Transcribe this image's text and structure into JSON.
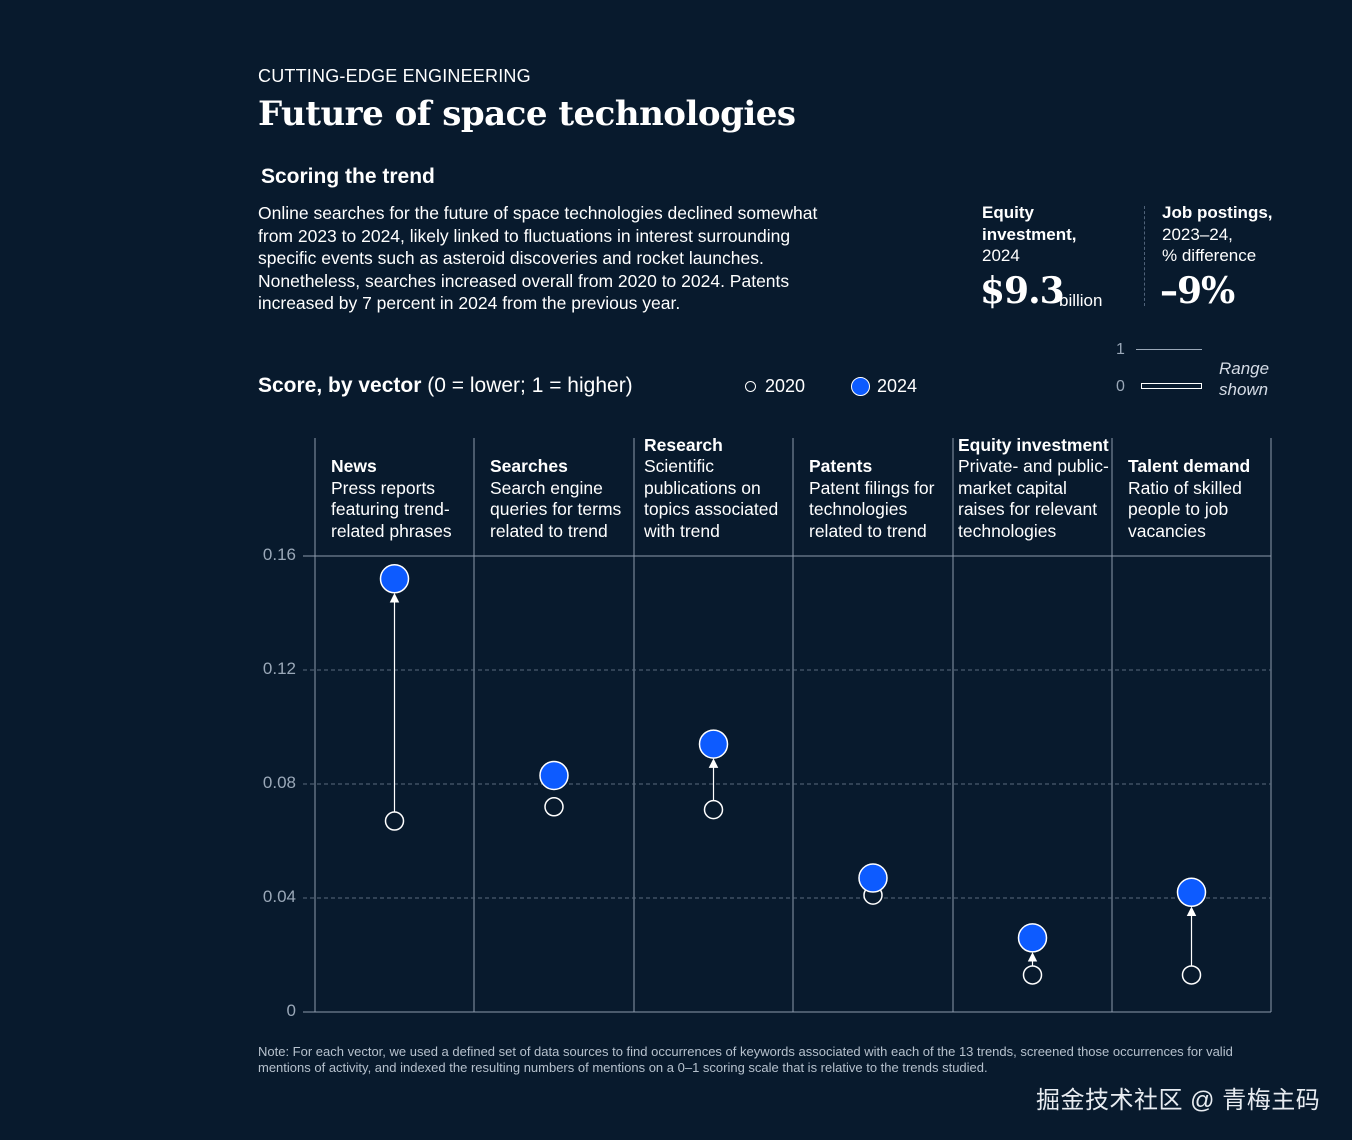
{
  "header": {
    "eyebrow": "CUTTING-EDGE ENGINEERING",
    "title": "Future of space technologies",
    "subhead": "Scoring the trend",
    "intro": "Online searches for the future of space technologies declined somewhat from 2023 to 2024, likely linked to fluctuations in interest surrounding specific events such as asteroid discoveries and rocket launches. Nonetheless, searches increased overall from 2020 to 2024. Patents increased by 7 percent in 2024 from the previous year."
  },
  "stats": {
    "equity": {
      "label_bold_1": "Equity",
      "label_bold_2": "investment,",
      "label_year": "2024",
      "value": "$9.3",
      "unit": "billion"
    },
    "jobs": {
      "label_bold": "Job postings,",
      "label_line2": "2023–24,",
      "label_line3": "% difference",
      "value": "–9%"
    }
  },
  "score": {
    "label_bold": "Score, by vector",
    "label_rest": " (0 = lower; 1 = higher)",
    "legend_2020": "2020",
    "legend_2024": "2024",
    "range_1": "1",
    "range_0": "0",
    "range_line1": "Range",
    "range_line2": "shown"
  },
  "columns": [
    {
      "name": "News",
      "desc": [
        "Press reports",
        "featuring trend-",
        "related phrases"
      ]
    },
    {
      "name": "Searches",
      "desc": [
        "Search engine",
        "queries for terms",
        "related to trend"
      ]
    },
    {
      "name": "Research",
      "desc": [
        "Scientific",
        "publications on",
        "topics associated",
        "with trend"
      ]
    },
    {
      "name": "Patents",
      "desc": [
        "Patent filings for",
        "technologies",
        "related to trend"
      ]
    },
    {
      "name": "Equity investment",
      "desc": [
        "Private- and public-",
        "market capital",
        "raises for relevant",
        "technologies"
      ]
    },
    {
      "name": "Talent demand",
      "desc": [
        "Ratio of skilled",
        "people to job",
        "vacancies"
      ]
    }
  ],
  "chart_data": {
    "type": "scatter",
    "categories": [
      "News",
      "Searches",
      "Research",
      "Patents",
      "Equity investment",
      "Talent demand"
    ],
    "series": [
      {
        "name": "2020",
        "values": [
          0.067,
          0.072,
          0.071,
          0.041,
          0.013,
          0.013
        ]
      },
      {
        "name": "2024",
        "values": [
          0.152,
          0.083,
          0.094,
          0.047,
          0.026,
          0.042
        ]
      }
    ],
    "ylim": [
      0,
      0.16
    ],
    "yticks": [
      "0",
      "0.04",
      "0.08",
      "0.12",
      "0.16"
    ],
    "ytick_values": [
      0,
      0.04,
      0.08,
      0.12,
      0.16
    ],
    "grid": true,
    "colors": {
      "2020": "#081a2d",
      "2024": "#0d5bff",
      "arrow": "#ffffff"
    }
  },
  "note": "Note: For each vector, we used a defined set of data sources to find occurrences of keywords associated with each of the 13 trends, screened those occurrences for valid mentions of activity, and indexed the resulting numbers of mentions on a 0–1 scoring scale that is relative to the trends studied.",
  "watermark": "掘金技术社区 @ 青梅主码"
}
